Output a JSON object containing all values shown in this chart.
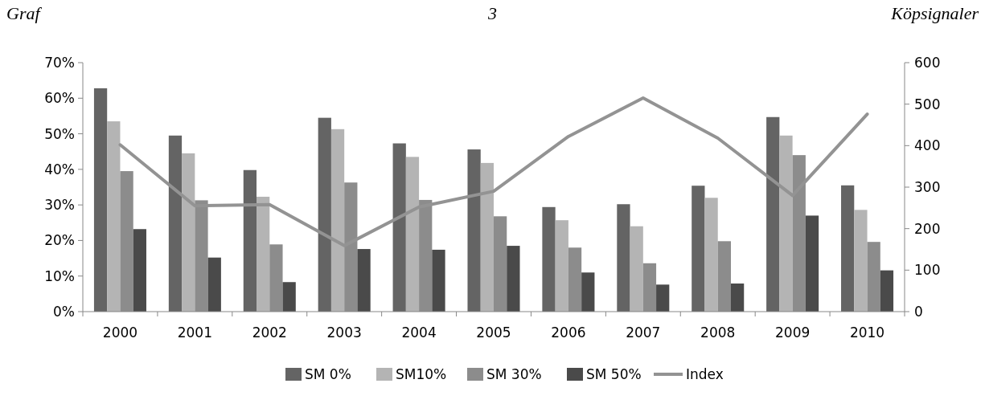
{
  "chart_data": {
    "type": "bar",
    "title": "Graf 3 Köpsignaler",
    "categories": [
      "2000",
      "2001",
      "2002",
      "2003",
      "2004",
      "2005",
      "2006",
      "2007",
      "2008",
      "2009",
      "2010"
    ],
    "series": [
      {
        "name": "SM 0%",
        "color": "#646464",
        "values": [
          62.8,
          49.5,
          39.8,
          54.5,
          47.3,
          45.6,
          29.4,
          30.2,
          35.4,
          54.7,
          35.5
        ]
      },
      {
        "name": "SM10%",
        "color": "#b4b4b4",
        "values": [
          53.5,
          44.5,
          32.3,
          51.3,
          43.5,
          41.8,
          25.7,
          24.0,
          32.0,
          49.5,
          28.6
        ]
      },
      {
        "name": "SM 30%",
        "color": "#8c8c8c",
        "values": [
          39.5,
          31.3,
          18.9,
          36.3,
          31.4,
          26.8,
          18.0,
          13.6,
          19.8,
          44.0,
          19.6
        ]
      },
      {
        "name": "SM 50%",
        "color": "#4a4a4a",
        "values": [
          23.2,
          15.2,
          8.3,
          17.6,
          17.4,
          18.5,
          11.0,
          7.6,
          7.9,
          27.0,
          11.6
        ]
      },
      {
        "name": "Index",
        "color": "#939393",
        "type": "line",
        "axis": "y2",
        "values": [
          402,
          255,
          258,
          159,
          252,
          290,
          422,
          515,
          418,
          280,
          476
        ]
      }
    ],
    "ylim": [
      0,
      70
    ],
    "yticks": [
      {
        "value": 0,
        "label": "0%"
      },
      {
        "value": 10,
        "label": "10%"
      },
      {
        "value": 20,
        "label": "20%"
      },
      {
        "value": 30,
        "label": "30%"
      },
      {
        "value": 40,
        "label": "40%"
      },
      {
        "value": 50,
        "label": "50%"
      },
      {
        "value": 60,
        "label": "60%"
      },
      {
        "value": 70,
        "label": "70%"
      }
    ],
    "y2lim": [
      0,
      600
    ],
    "y2ticks": [
      0,
      100,
      200,
      300,
      400,
      500,
      600
    ],
    "legend": "bottom",
    "grid": false,
    "marker": "none",
    "line_style": "solid"
  }
}
